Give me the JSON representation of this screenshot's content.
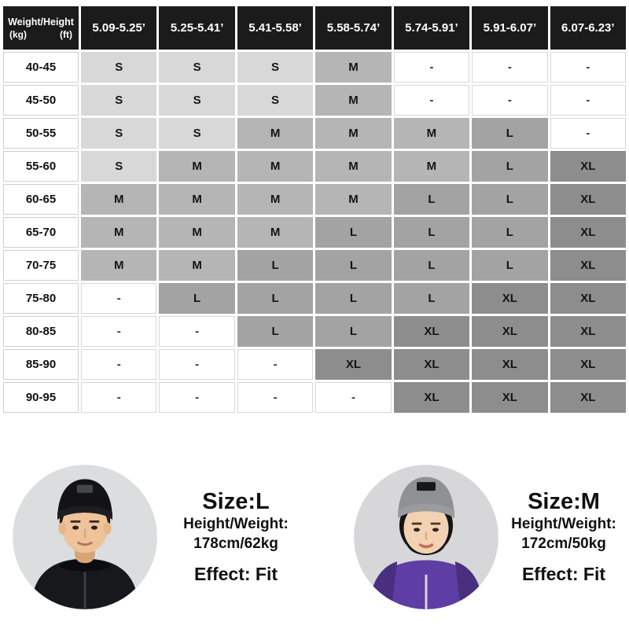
{
  "colors": {
    "header_bg": "#1b1b1b",
    "header_text": "#ffffff",
    "size_S": "#d8d8d8",
    "size_M": "#b5b5b5",
    "size_L": "#a3a3a3",
    "size_XL": "#8d8d8d",
    "empty_bg": "#ffffff",
    "left_jacket": "#17181c",
    "right_jacket": "#5e3da4"
  },
  "chart_data": {
    "type": "table",
    "title": "Size chart by weight (kg) and height (ft)",
    "corner": {
      "title": "Weight/Height",
      "kg": "(kg)",
      "ft": "(ft)"
    },
    "columns": [
      "5.09-5.25’",
      "5.25-5.41’",
      "5.41-5.58’",
      "5.58-5.74’",
      "5.74-5.91’",
      "5.91-6.07’",
      "6.07-6.23’"
    ],
    "rows": [
      {
        "label": "40-45",
        "cells": [
          "S",
          "S",
          "S",
          "M",
          "-",
          "-",
          "-"
        ]
      },
      {
        "label": "45-50",
        "cells": [
          "S",
          "S",
          "S",
          "M",
          "-",
          "-",
          "-"
        ]
      },
      {
        "label": "50-55",
        "cells": [
          "S",
          "S",
          "M",
          "M",
          "M",
          "L",
          "-"
        ]
      },
      {
        "label": "55-60",
        "cells": [
          "S",
          "M",
          "M",
          "M",
          "M",
          "L",
          "XL"
        ]
      },
      {
        "label": "60-65",
        "cells": [
          "M",
          "M",
          "M",
          "M",
          "L",
          "L",
          "XL"
        ]
      },
      {
        "label": "65-70",
        "cells": [
          "M",
          "M",
          "M",
          "L",
          "L",
          "L",
          "XL"
        ]
      },
      {
        "label": "70-75",
        "cells": [
          "M",
          "M",
          "L",
          "L",
          "L",
          "L",
          "XL"
        ]
      },
      {
        "label": "75-80",
        "cells": [
          "-",
          "L",
          "L",
          "L",
          "L",
          "XL",
          "XL"
        ]
      },
      {
        "label": "80-85",
        "cells": [
          "-",
          "-",
          "L",
          "L",
          "XL",
          "XL",
          "XL"
        ]
      },
      {
        "label": "85-90",
        "cells": [
          "-",
          "-",
          "-",
          "XL",
          "XL",
          "XL",
          "XL"
        ]
      },
      {
        "label": "90-95",
        "cells": [
          "-",
          "-",
          "-",
          "-",
          "XL",
          "XL",
          "XL"
        ]
      }
    ]
  },
  "models": [
    {
      "size": "Size:L",
      "hw_label": "Height/Weight:",
      "hw_value": "178cm/62kg",
      "effect": "Effect: Fit"
    },
    {
      "size": "Size:M",
      "hw_label": "Height/Weight:",
      "hw_value": "172cm/50kg",
      "effect": "Effect: Fit"
    }
  ]
}
